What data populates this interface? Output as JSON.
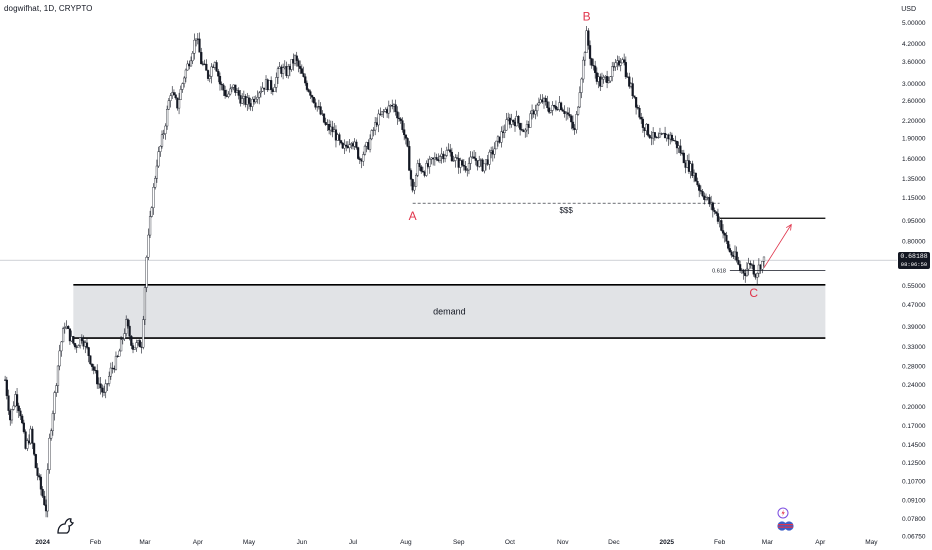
{
  "header": {
    "symbol_title": "dogwifhat, 1D, CRYPTO",
    "currency": "USD"
  },
  "price_tag": {
    "price": "0.68188",
    "countdown": "08:06:50"
  },
  "icons": [
    "lightning-icon",
    "flag-icon",
    "flag-icon",
    "tradingview-logo-icon"
  ],
  "colors": {
    "up": "#131722",
    "down": "#131722",
    "wave_label": "#e0344b",
    "arrow": "#e0344b",
    "demand_fill": "#e1e3e6",
    "price_line": "#b2b5be"
  },
  "chart_data": {
    "type": "candlestick",
    "y_scale": "log",
    "ylim": [
      0.0675,
      5.2
    ],
    "x_domain": [
      "2023-12-07",
      "2025-05-16"
    ],
    "ytick_labels": [
      "5.00000",
      "4.20000",
      "3.60000",
      "3.00000",
      "2.60000",
      "2.20000",
      "1.90000",
      "1.60000",
      "1.35000",
      "1.15000",
      "0.95000",
      "0.80000",
      "0.68188",
      "0.55000",
      "0.47000",
      "0.39000",
      "0.33000",
      "0.28000",
      "0.24000",
      "0.20000",
      "0.17000",
      "0.14500",
      "0.12500",
      "0.10700",
      "0.09100",
      "0.07800",
      "0.06750"
    ],
    "xtick_labels": [
      {
        "date": "2024-01-01",
        "label": "2024",
        "bold": true
      },
      {
        "date": "2024-02-01",
        "label": "Feb"
      },
      {
        "date": "2024-03-01",
        "label": "Mar"
      },
      {
        "date": "2024-04-01",
        "label": "Apr"
      },
      {
        "date": "2024-05-01",
        "label": "May"
      },
      {
        "date": "2024-06-01",
        "label": "Jun"
      },
      {
        "date": "2024-07-01",
        "label": "Jul"
      },
      {
        "date": "2024-08-01",
        "label": "Aug"
      },
      {
        "date": "2024-09-01",
        "label": "Sep"
      },
      {
        "date": "2024-10-01",
        "label": "Oct"
      },
      {
        "date": "2024-11-01",
        "label": "Nov"
      },
      {
        "date": "2024-12-01",
        "label": "Dec"
      },
      {
        "date": "2025-01-01",
        "label": "2025",
        "bold": true
      },
      {
        "date": "2025-02-01",
        "label": "Feb"
      },
      {
        "date": "2025-03-01",
        "label": "Mar"
      },
      {
        "date": "2025-04-01",
        "label": "Apr"
      },
      {
        "date": "2025-05-01",
        "label": "May"
      }
    ],
    "close_path": [
      [
        "2023-12-10",
        0.25
      ],
      [
        "2023-12-13",
        0.18
      ],
      [
        "2023-12-16",
        0.22
      ],
      [
        "2023-12-19",
        0.19
      ],
      [
        "2023-12-22",
        0.14
      ],
      [
        "2023-12-25",
        0.16
      ],
      [
        "2023-12-28",
        0.12
      ],
      [
        "2023-12-31",
        0.1
      ],
      [
        "2024-01-03",
        0.085
      ],
      [
        "2024-01-05",
        0.15
      ],
      [
        "2024-01-08",
        0.22
      ],
      [
        "2024-01-11",
        0.32
      ],
      [
        "2024-01-14",
        0.4
      ],
      [
        "2024-01-17",
        0.36
      ],
      [
        "2024-01-20",
        0.33
      ],
      [
        "2024-01-24",
        0.36
      ],
      [
        "2024-01-28",
        0.31
      ],
      [
        "2024-02-02",
        0.25
      ],
      [
        "2024-02-06",
        0.22
      ],
      [
        "2024-02-10",
        0.27
      ],
      [
        "2024-02-14",
        0.3
      ],
      [
        "2024-02-19",
        0.4
      ],
      [
        "2024-02-23",
        0.33
      ],
      [
        "2024-02-28",
        0.34
      ],
      [
        "2024-03-02",
        0.7
      ],
      [
        "2024-03-05",
        1.1
      ],
      [
        "2024-03-08",
        1.55
      ],
      [
        "2024-03-12",
        2.0
      ],
      [
        "2024-03-16",
        2.8
      ],
      [
        "2024-03-20",
        2.5
      ],
      [
        "2024-03-24",
        3.2
      ],
      [
        "2024-03-28",
        3.8
      ],
      [
        "2024-03-31",
        4.5
      ],
      [
        "2024-04-03",
        3.6
      ],
      [
        "2024-04-07",
        3.2
      ],
      [
        "2024-04-11",
        3.7
      ],
      [
        "2024-04-14",
        3.0
      ],
      [
        "2024-04-18",
        2.7
      ],
      [
        "2024-04-22",
        2.9
      ],
      [
        "2024-04-27",
        2.6
      ],
      [
        "2024-05-02",
        2.55
      ],
      [
        "2024-05-06",
        2.8
      ],
      [
        "2024-05-11",
        3.0
      ],
      [
        "2024-05-15",
        2.9
      ],
      [
        "2024-05-19",
        3.4
      ],
      [
        "2024-05-23",
        3.3
      ],
      [
        "2024-05-28",
        3.7
      ],
      [
        "2024-06-02",
        3.1
      ],
      [
        "2024-06-06",
        2.8
      ],
      [
        "2024-06-11",
        2.4
      ],
      [
        "2024-06-15",
        2.1
      ],
      [
        "2024-06-20",
        2.0
      ],
      [
        "2024-06-25",
        1.7
      ],
      [
        "2024-06-30",
        1.9
      ],
      [
        "2024-07-05",
        1.6
      ],
      [
        "2024-07-10",
        1.8
      ],
      [
        "2024-07-15",
        2.2
      ],
      [
        "2024-07-20",
        2.4
      ],
      [
        "2024-07-25",
        2.5
      ],
      [
        "2024-07-30",
        2.1
      ],
      [
        "2024-08-02",
        1.7
      ],
      [
        "2024-08-05",
        1.2
      ],
      [
        "2024-08-08",
        1.5
      ],
      [
        "2024-08-12",
        1.45
      ],
      [
        "2024-08-16",
        1.55
      ],
      [
        "2024-08-21",
        1.65
      ],
      [
        "2024-08-26",
        1.7
      ],
      [
        "2024-08-31",
        1.55
      ],
      [
        "2024-09-05",
        1.5
      ],
      [
        "2024-09-10",
        1.6
      ],
      [
        "2024-09-15",
        1.5
      ],
      [
        "2024-09-20",
        1.65
      ],
      [
        "2024-09-25",
        1.9
      ],
      [
        "2024-09-30",
        2.2
      ],
      [
        "2024-10-05",
        2.2
      ],
      [
        "2024-10-10",
        2.0
      ],
      [
        "2024-10-15",
        2.4
      ],
      [
        "2024-10-20",
        2.6
      ],
      [
        "2024-10-25",
        2.4
      ],
      [
        "2024-10-30",
        2.55
      ],
      [
        "2024-11-04",
        2.3
      ],
      [
        "2024-11-08",
        2.0
      ],
      [
        "2024-11-11",
        2.9
      ],
      [
        "2024-11-13",
        3.6
      ],
      [
        "2024-11-15",
        4.5
      ],
      [
        "2024-11-18",
        3.5
      ],
      [
        "2024-11-23",
        3.0
      ],
      [
        "2024-11-28",
        3.2
      ],
      [
        "2024-12-03",
        3.5
      ],
      [
        "2024-12-06",
        3.8
      ],
      [
        "2024-12-09",
        3.1
      ],
      [
        "2024-12-13",
        2.7
      ],
      [
        "2024-12-17",
        2.2
      ],
      [
        "2024-12-21",
        2.0
      ],
      [
        "2024-12-26",
        1.85
      ],
      [
        "2024-12-31",
        1.95
      ],
      [
        "2025-01-04",
        1.9
      ],
      [
        "2025-01-08",
        1.75
      ],
      [
        "2025-01-12",
        1.55
      ],
      [
        "2025-01-16",
        1.45
      ],
      [
        "2025-01-20",
        1.25
      ],
      [
        "2025-01-24",
        1.15
      ],
      [
        "2025-01-28",
        1.05
      ],
      [
        "2025-02-01",
        0.95
      ],
      [
        "2025-02-04",
        0.82
      ],
      [
        "2025-02-07",
        0.73
      ],
      [
        "2025-02-10",
        0.7
      ],
      [
        "2025-02-13",
        0.63
      ],
      [
        "2025-02-16",
        0.62
      ],
      [
        "2025-02-19",
        0.67
      ],
      [
        "2025-02-22",
        0.61
      ],
      [
        "2025-02-25",
        0.66
      ],
      [
        "2025-02-27",
        0.68188
      ]
    ],
    "annotations": {
      "wave_points": [
        {
          "label": "A",
          "date": "2024-08-05",
          "price": 1.1,
          "text_price": 1.02
        },
        {
          "label": "B",
          "date": "2024-11-15",
          "price": 4.6,
          "text_price": 5.0
        },
        {
          "label": "C",
          "date": "2025-02-21",
          "price": 0.57,
          "text_price": 0.535
        }
      ],
      "liquidity_line": {
        "label": "$$$",
        "start_date": "2024-08-05",
        "end_date": "2025-02-01",
        "price": 1.1
      },
      "resistance_line": {
        "start_date": "2025-02-01",
        "end_date": "2025-04-04",
        "price": 0.97
      },
      "fib_line": {
        "label": "0.618",
        "start_date": "2025-02-07",
        "end_date": "2025-04-04",
        "price": 0.625
      },
      "demand_zone": {
        "label": "demand",
        "start_date": "2024-01-19",
        "end_date": "2025-04-04",
        "top": 0.555,
        "bottom": 0.355
      },
      "projection_arrow": {
        "from_date": "2025-02-27",
        "from_price": 0.64,
        "to_date": "2025-03-15",
        "to_price": 0.92
      },
      "last_price": 0.68188
    }
  }
}
